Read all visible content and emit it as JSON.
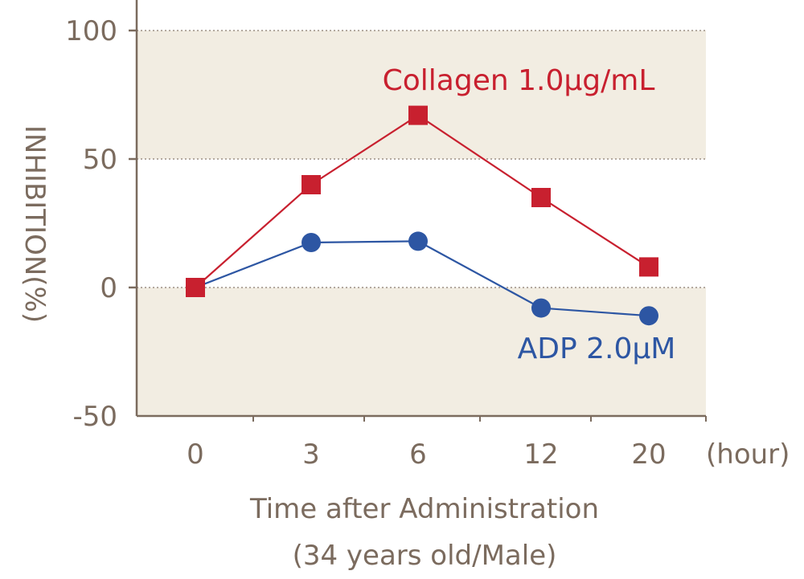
{
  "chart_data": {
    "type": "line",
    "categories": [
      "0",
      "3",
      "6",
      "12",
      "20"
    ],
    "x_unit": "(hour)",
    "xlabel": "Time after Administration",
    "xlabel_sub": "(34 years old/Male)",
    "ylabel": "INHIBITION(%)",
    "ylim": [
      -50,
      100
    ],
    "yticks": [
      "100",
      "50",
      "0",
      "-50"
    ],
    "grid": "horizontal dotted",
    "series": [
      {
        "name": "Collagen 1.0μg/mL",
        "marker": "square",
        "color": "#c8202f",
        "values": [
          0,
          40,
          67,
          35,
          8
        ]
      },
      {
        "name": "ADP 2.0μM",
        "marker": "circle",
        "color": "#2d56a3",
        "values": [
          0,
          17.5,
          18,
          -8,
          -11
        ]
      }
    ]
  },
  "colors": {
    "band": "#f2ede2",
    "axis": "#7b6b5e"
  }
}
